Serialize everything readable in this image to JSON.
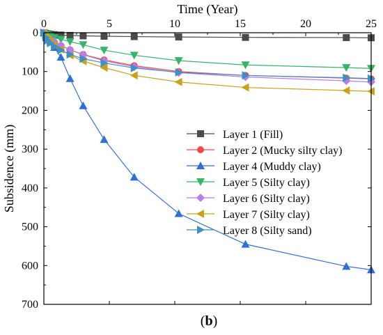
{
  "caption": {
    "open": "(",
    "letter": "b",
    "close": ")"
  },
  "colors": {
    "layer1": "#4a4a4a",
    "layer2": "#f44848",
    "layer4": "#2f6fd6",
    "layer5": "#36b56a",
    "layer6": "#b57ee8",
    "layer7": "#c8a21a",
    "layer8": "#3d8fc4"
  },
  "chart_data": {
    "type": "line",
    "title": "",
    "xlabel": "Time (Year)",
    "ylabel": "Subsidence (mm)",
    "xlim": [
      0,
      25
    ],
    "ylim": [
      0,
      700
    ],
    "y_inverted": true,
    "x_axis_position": "top",
    "x_ticks": [
      0,
      5,
      10,
      15,
      20,
      25
    ],
    "y_ticks": [
      0,
      100,
      200,
      300,
      400,
      500,
      600,
      700
    ],
    "legend_position": "center-right",
    "grid": false,
    "series": [
      {
        "name": "Layer 1 (Fill)",
        "marker": "square",
        "color": "#4a4a4a",
        "x": [
          0,
          0.15,
          0.3,
          0.5,
          0.8,
          1.3,
          2,
          3,
          4.6,
          6.9,
          10.3,
          15.4,
          23.1,
          25
        ],
        "y": [
          0,
          2,
          3,
          4,
          5,
          6,
          7,
          8,
          9,
          10,
          11,
          12,
          12.5,
          13
        ]
      },
      {
        "name": "Layer 2 (Mucky silty clay)",
        "marker": "circle",
        "color": "#f44848",
        "x": [
          0,
          0.15,
          0.3,
          0.5,
          0.8,
          1.3,
          2,
          3,
          4.6,
          6.9,
          10.3,
          15.4,
          23.1,
          25
        ],
        "y": [
          0,
          8,
          13,
          18,
          24,
          33,
          44,
          56,
          70,
          85,
          100,
          110,
          117,
          119
        ]
      },
      {
        "name": "Layer 4 (Muddy clay)",
        "marker": "triangle-up",
        "color": "#2f6fd6",
        "x": [
          0,
          0.15,
          0.3,
          0.5,
          0.8,
          1.3,
          2,
          3,
          4.6,
          6.9,
          10.3,
          15.4,
          23.1,
          25
        ],
        "y": [
          0,
          5,
          12,
          22,
          38,
          63,
          118,
          188,
          275,
          372,
          466,
          545,
          602,
          611
        ]
      },
      {
        "name": "Layer 5 (Silty clay)",
        "marker": "triangle-down",
        "color": "#36b56a",
        "x": [
          0,
          0.15,
          0.3,
          0.5,
          0.8,
          1.3,
          2,
          3,
          4.6,
          6.9,
          10.3,
          15.4,
          23.1,
          25
        ],
        "y": [
          0,
          4,
          6,
          9,
          13,
          17,
          23,
          31,
          45,
          58,
          72,
          83,
          90,
          92
        ]
      },
      {
        "name": "Layer 6 (Silty clay)",
        "marker": "diamond",
        "color": "#b57ee8",
        "x": [
          0,
          0.15,
          0.3,
          0.5,
          0.8,
          1.3,
          2,
          3,
          4.6,
          6.9,
          10.3,
          15.4,
          23.1,
          25
        ],
        "y": [
          0,
          7,
          12,
          17,
          23,
          32,
          44,
          57,
          72,
          88,
          103,
          114,
          124,
          127
        ]
      },
      {
        "name": "Layer 7 (Silty clay)",
        "marker": "triangle-left",
        "color": "#c8a21a",
        "x": [
          0,
          0.15,
          0.3,
          0.5,
          0.8,
          1.3,
          2,
          3,
          4.6,
          6.9,
          10.3,
          15.4,
          23.1,
          25
        ],
        "y": [
          0,
          10,
          17,
          24,
          32,
          43,
          58,
          73,
          90,
          110,
          127,
          141,
          149,
          151
        ]
      },
      {
        "name": "Layer 8 (Silty sand)",
        "marker": "triangle-right",
        "color": "#3d8fc4",
        "x": [
          0,
          0.15,
          0.3,
          0.5,
          0.8,
          1.3,
          2,
          3,
          4.6,
          6.9,
          10.3,
          15.4,
          23.1,
          25
        ],
        "y": [
          0,
          12,
          20,
          27,
          35,
          45,
          56,
          67,
          78,
          91,
          102,
          110,
          116,
          118
        ]
      }
    ]
  }
}
